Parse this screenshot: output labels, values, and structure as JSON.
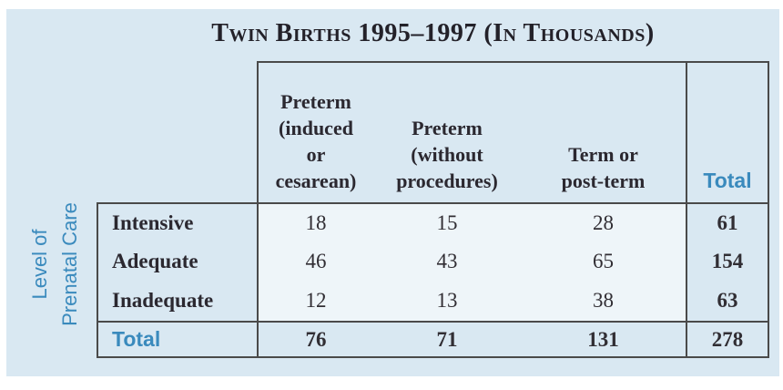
{
  "title": "Twin Births 1995–1997 (In Thousands)",
  "side_label": {
    "line1": "Level of",
    "line2": "Prenatal Care"
  },
  "table_display": {
    "column_headers": [
      "Preterm\n(induced\nor\ncesarean)",
      "Preterm\n(without\nprocedures)",
      "Term or\npost-term",
      "Total"
    ]
  },
  "colors": {
    "panel_background": "#d9e8f2",
    "data_cell_background": "#eef5f9",
    "border": "#4a4a4a",
    "accent_blue": "#3a8abd",
    "text_dark": "#2b2830"
  },
  "chart_data": {
    "type": "table",
    "title": "Twin Births 1995–1997 (In Thousands)",
    "row_axis_label": "Level of Prenatal Care",
    "columns": [
      "Preterm (induced or cesarean)",
      "Preterm (without procedures)",
      "Term or post-term",
      "Total"
    ],
    "rows": [
      {
        "label": "Intensive",
        "values": [
          18,
          15,
          28,
          61
        ]
      },
      {
        "label": "Adequate",
        "values": [
          46,
          43,
          65,
          154
        ]
      },
      {
        "label": "Inadequate",
        "values": [
          12,
          13,
          38,
          63
        ]
      },
      {
        "label": "Total",
        "values": [
          76,
          71,
          131,
          278
        ]
      }
    ]
  }
}
